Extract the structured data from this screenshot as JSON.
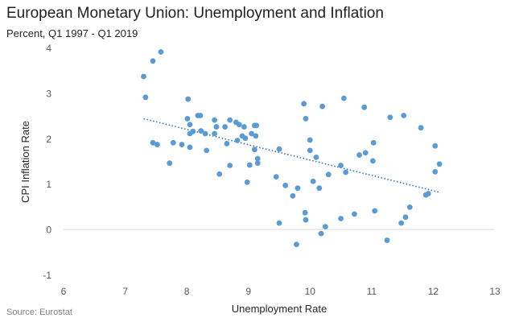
{
  "chart_data": {
    "type": "scatter",
    "title": "European Monetary Union: Unemployment and Inflation",
    "subtitle": "Percent, Q1 1997 - Q1 2019",
    "source": "Source: Eurostat",
    "xlabel": "Unemployment  Rate",
    "ylabel": "CPI Inflation Rate",
    "xlim": [
      6,
      13
    ],
    "ylim": [
      -1,
      4
    ],
    "xticks": [
      "6",
      "7",
      "8",
      "9",
      "10",
      "11",
      "12",
      "13"
    ],
    "yticks": [
      "-1",
      "0",
      "1",
      "2",
      "3",
      "4"
    ],
    "grid": false,
    "legend": "none",
    "point_color": "#5b9bd5",
    "trendline": {
      "style": "dotted",
      "color": "#2e75b6",
      "x": [
        7.3,
        12.1
      ],
      "y": [
        2.45,
        0.83
      ]
    },
    "points": [
      [
        7.3,
        3.38
      ],
      [
        7.45,
        3.72
      ],
      [
        7.58,
        3.92
      ],
      [
        7.33,
        2.92
      ],
      [
        7.45,
        1.92
      ],
      [
        7.52,
        1.88
      ],
      [
        7.72,
        1.47
      ],
      [
        7.78,
        1.92
      ],
      [
        7.92,
        1.88
      ],
      [
        8.02,
        2.88
      ],
      [
        8.01,
        2.45
      ],
      [
        8.05,
        2.32
      ],
      [
        8.05,
        2.12
      ],
      [
        8.1,
        2.17
      ],
      [
        8.05,
        1.82
      ],
      [
        8.18,
        2.52
      ],
      [
        8.22,
        2.52
      ],
      [
        8.23,
        2.18
      ],
      [
        8.3,
        2.12
      ],
      [
        8.32,
        1.75
      ],
      [
        8.45,
        2.42
      ],
      [
        8.48,
        2.27
      ],
      [
        8.45,
        2.12
      ],
      [
        8.53,
        1.23
      ],
      [
        8.62,
        2.27
      ],
      [
        8.65,
        1.9
      ],
      [
        8.7,
        2.42
      ],
      [
        8.7,
        1.42
      ],
      [
        8.8,
        2.37
      ],
      [
        8.85,
        2.32
      ],
      [
        8.82,
        1.97
      ],
      [
        8.9,
        2.07
      ],
      [
        8.93,
        2.27
      ],
      [
        8.95,
        2.02
      ],
      [
        8.98,
        1.05
      ],
      [
        9.02,
        1.43
      ],
      [
        9.05,
        2.12
      ],
      [
        9.1,
        2.3
      ],
      [
        9.12,
        2.07
      ],
      [
        9.13,
        2.3
      ],
      [
        9.1,
        1.77
      ],
      [
        9.15,
        1.57
      ],
      [
        9.15,
        1.47
      ],
      [
        9.45,
        1.17
      ],
      [
        9.5,
        1.78
      ],
      [
        9.5,
        0.15
      ],
      [
        9.6,
        0.98
      ],
      [
        9.72,
        0.75
      ],
      [
        9.78,
        -0.32
      ],
      [
        9.8,
        0.92
      ],
      [
        9.9,
        2.78
      ],
      [
        9.93,
        2.45
      ],
      [
        9.92,
        0.38
      ],
      [
        9.93,
        0.22
      ],
      [
        10,
        1.98
      ],
      [
        10,
        1.75
      ],
      [
        10.05,
        1.07
      ],
      [
        10.1,
        1.6
      ],
      [
        10.15,
        0.92
      ],
      [
        10.18,
        -0.08
      ],
      [
        10.2,
        2.72
      ],
      [
        10.25,
        0.07
      ],
      [
        10.3,
        1.22
      ],
      [
        10.5,
        1.42
      ],
      [
        10.5,
        0.25
      ],
      [
        10.55,
        2.9
      ],
      [
        10.58,
        1.27
      ],
      [
        10.72,
        0.35
      ],
      [
        10.8,
        1.65
      ],
      [
        10.88,
        2.7
      ],
      [
        10.9,
        1.7
      ],
      [
        11.02,
        1.52
      ],
      [
        11.03,
        1.92
      ],
      [
        11.05,
        0.42
      ],
      [
        11.25,
        -0.23
      ],
      [
        11.3,
        2.48
      ],
      [
        11.48,
        0.15
      ],
      [
        11.52,
        2.52
      ],
      [
        11.55,
        0.28
      ],
      [
        11.62,
        0.5
      ],
      [
        11.8,
        2.25
      ],
      [
        11.88,
        0.77
      ],
      [
        11.92,
        0.8
      ],
      [
        12.03,
        1.85
      ],
      [
        12.03,
        1.28
      ],
      [
        12.1,
        1.45
      ]
    ]
  }
}
